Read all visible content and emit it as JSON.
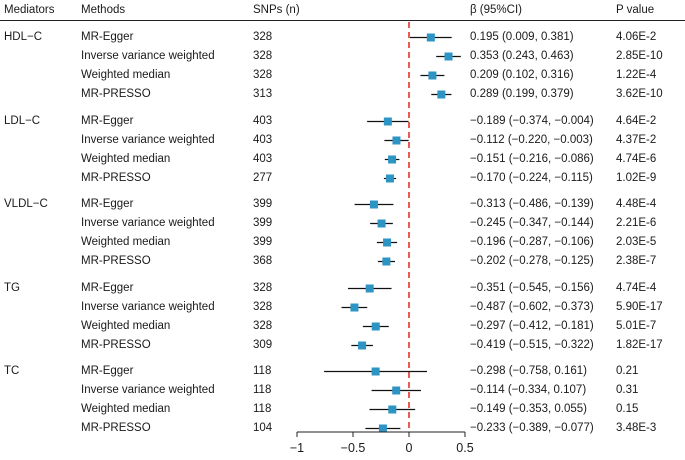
{
  "headers": {
    "mediators": "Mediators",
    "methods": "Methods",
    "snps": "SNPs (n)",
    "beta": "β (95%CI)",
    "pvalue": "P value"
  },
  "groups": [
    {
      "name": "HDL−C",
      "rows": [
        {
          "method": "MR-Egger",
          "snps": "328",
          "beta_text": "0.195 (0.009, 0.381)",
          "p": "4.06E-2"
        },
        {
          "method": "Inverse variance weighted",
          "snps": "328",
          "beta_text": "0.353 (0.243, 0.463)",
          "p": "2.85E-10"
        },
        {
          "method": "Weighted median",
          "snps": "328",
          "beta_text": "0.209 (0.102, 0.316)",
          "p": "1.22E-4"
        },
        {
          "method": "MR-PRESSO",
          "snps": "313",
          "beta_text": "0.289 (0.199, 0.379)",
          "p": "3.62E-10"
        }
      ]
    },
    {
      "name": "LDL−C",
      "rows": [
        {
          "method": "MR-Egger",
          "snps": "403",
          "beta_text": "−0.189 (−0.374, −0.004)",
          "p": "4.64E-2"
        },
        {
          "method": "Inverse variance weighted",
          "snps": "403",
          "beta_text": "−0.112 (−0.220, −0.003)",
          "p": "4.37E-2"
        },
        {
          "method": "Weighted median",
          "snps": "403",
          "beta_text": "−0.151 (−0.216, −0.086)",
          "p": "4.74E-6"
        },
        {
          "method": "MR-PRESSO",
          "snps": "277",
          "beta_text": "−0.170 (−0.224, −0.115)",
          "p": "1.02E-9"
        }
      ]
    },
    {
      "name": "VLDL−C",
      "rows": [
        {
          "method": "MR-Egger",
          "snps": "399",
          "beta_text": "−0.313 (−0.486, −0.139)",
          "p": "4.48E-4"
        },
        {
          "method": "Inverse variance weighted",
          "snps": "399",
          "beta_text": "−0.245 (−0.347, −0.144)",
          "p": "2.21E-6"
        },
        {
          "method": "Weighted median",
          "snps": "399",
          "beta_text": "−0.196 (−0.287, −0.106)",
          "p": "2.03E-5"
        },
        {
          "method": "MR-PRESSO",
          "snps": "368",
          "beta_text": "−0.202 (−0.278, −0.125)",
          "p": "2.38E-7"
        }
      ]
    },
    {
      "name": "TG",
      "rows": [
        {
          "method": "MR-Egger",
          "snps": "328",
          "beta_text": "−0.351 (−0.545, −0.156)",
          "p": "4.74E-4"
        },
        {
          "method": "Inverse variance weighted",
          "snps": "328",
          "beta_text": "−0.487 (−0.602, −0.373)",
          "p": "5.90E-17"
        },
        {
          "method": "Weighted median",
          "snps": "328",
          "beta_text": "−0.297 (−0.412, −0.181)",
          "p": "5.01E-7"
        },
        {
          "method": "MR-PRESSO",
          "snps": "309",
          "beta_text": "−0.419 (−0.515, −0.322)",
          "p": "1.82E-17"
        }
      ]
    },
    {
      "name": "TC",
      "rows": [
        {
          "method": "MR-Egger",
          "snps": "118",
          "beta_text": "−0.298 (−0.758, 0.161)",
          "p": "0.21"
        },
        {
          "method": "Inverse variance weighted",
          "snps": "118",
          "beta_text": "−0.114 (−0.334, 0.107)",
          "p": "0.31"
        },
        {
          "method": "Weighted median",
          "snps": "118",
          "beta_text": "−0.149 (−0.353, 0.055)",
          "p": "0.15"
        },
        {
          "method": "MR-PRESSO",
          "snps": "104",
          "beta_text": "−0.233 (−0.389, −0.077)",
          "p": "3.48E-3"
        }
      ]
    }
  ],
  "chart_data": {
    "type": "forest",
    "title": "",
    "xlabel": "",
    "xlim": [
      -1,
      0.5
    ],
    "x_ticks": [
      -1,
      -0.5,
      0,
      0.5
    ],
    "x_tick_labels": [
      "−1",
      "−0.5",
      "0",
      "0.5"
    ],
    "reference_line": 0,
    "colors": {
      "marker": "#2e94c4",
      "ci_line": "#111111",
      "reference": "#e8322c"
    },
    "series": [
      {
        "group": "HDL−C",
        "method": "MR-Egger",
        "beta": 0.195,
        "lo": 0.009,
        "hi": 0.381
      },
      {
        "group": "HDL−C",
        "method": "Inverse variance weighted",
        "beta": 0.353,
        "lo": 0.243,
        "hi": 0.463
      },
      {
        "group": "HDL−C",
        "method": "Weighted median",
        "beta": 0.209,
        "lo": 0.102,
        "hi": 0.316
      },
      {
        "group": "HDL−C",
        "method": "MR-PRESSO",
        "beta": 0.289,
        "lo": 0.199,
        "hi": 0.379
      },
      {
        "group": "LDL−C",
        "method": "MR-Egger",
        "beta": -0.189,
        "lo": -0.374,
        "hi": -0.004
      },
      {
        "group": "LDL−C",
        "method": "Inverse variance weighted",
        "beta": -0.112,
        "lo": -0.22,
        "hi": -0.003
      },
      {
        "group": "LDL−C",
        "method": "Weighted median",
        "beta": -0.151,
        "lo": -0.216,
        "hi": -0.086
      },
      {
        "group": "LDL−C",
        "method": "MR-PRESSO",
        "beta": -0.17,
        "lo": -0.224,
        "hi": -0.115
      },
      {
        "group": "VLDL−C",
        "method": "MR-Egger",
        "beta": -0.313,
        "lo": -0.486,
        "hi": -0.139
      },
      {
        "group": "VLDL−C",
        "method": "Inverse variance weighted",
        "beta": -0.245,
        "lo": -0.347,
        "hi": -0.144
      },
      {
        "group": "VLDL−C",
        "method": "Weighted median",
        "beta": -0.196,
        "lo": -0.287,
        "hi": -0.106
      },
      {
        "group": "VLDL−C",
        "method": "MR-PRESSO",
        "beta": -0.202,
        "lo": -0.278,
        "hi": -0.125
      },
      {
        "group": "TG",
        "method": "MR-Egger",
        "beta": -0.351,
        "lo": -0.545,
        "hi": -0.156
      },
      {
        "group": "TG",
        "method": "Inverse variance weighted",
        "beta": -0.487,
        "lo": -0.602,
        "hi": -0.373
      },
      {
        "group": "TG",
        "method": "Weighted median",
        "beta": -0.297,
        "lo": -0.412,
        "hi": -0.181
      },
      {
        "group": "TG",
        "method": "MR-PRESSO",
        "beta": -0.419,
        "lo": -0.515,
        "hi": -0.322
      },
      {
        "group": "TC",
        "method": "MR-Egger",
        "beta": -0.298,
        "lo": -0.758,
        "hi": 0.161
      },
      {
        "group": "TC",
        "method": "Inverse variance weighted",
        "beta": -0.114,
        "lo": -0.334,
        "hi": 0.107
      },
      {
        "group": "TC",
        "method": "Weighted median",
        "beta": -0.149,
        "lo": -0.353,
        "hi": 0.055
      },
      {
        "group": "TC",
        "method": "MR-PRESSO",
        "beta": -0.233,
        "lo": -0.389,
        "hi": -0.077
      }
    ]
  }
}
